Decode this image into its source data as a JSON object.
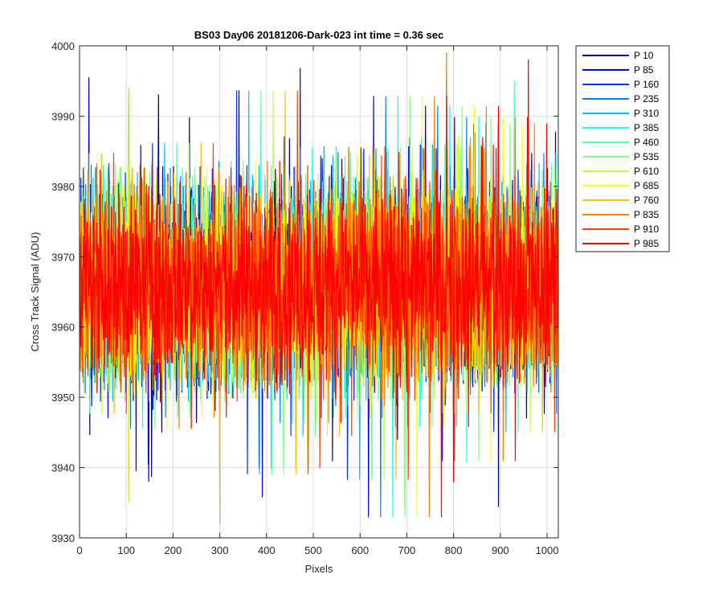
{
  "chart_data": {
    "type": "line",
    "title": "BS03 Day06 20181206-Dark-023 int time = 0.36 sec",
    "xlabel": "Pixels",
    "ylabel": "Cross Track Signal (ADU)",
    "xlim": [
      0,
      1024
    ],
    "ylim": [
      3930,
      4000
    ],
    "xticks": [
      0,
      100,
      200,
      300,
      400,
      500,
      600,
      700,
      800,
      900,
      1000
    ],
    "yticks": [
      3930,
      3940,
      3950,
      3960,
      3970,
      3980,
      3990,
      4000
    ],
    "grid": true,
    "legend_position": "outside-top-right",
    "noise_model": {
      "mean": 3966,
      "typical_range": [
        3950,
        3983
      ],
      "notable_extremes": [
        {
          "x": 105,
          "y": 3994
        },
        {
          "x": 105,
          "y": 3935
        },
        {
          "x": 300,
          "y": 3932
        },
        {
          "x": 785,
          "y": 3999
        },
        {
          "x": 800,
          "y": 3938
        },
        {
          "x": 960,
          "y": 3998
        },
        {
          "x": 930,
          "y": 3995
        },
        {
          "x": 695,
          "y": 3936
        }
      ]
    },
    "series": [
      {
        "name": "P 10",
        "color": "#00008f"
      },
      {
        "name": "P 85",
        "color": "#0000e6"
      },
      {
        "name": "P 160",
        "color": "#0033ff"
      },
      {
        "name": "P 235",
        "color": "#0080ff"
      },
      {
        "name": "P 310",
        "color": "#00c0ff"
      },
      {
        "name": "P 385",
        "color": "#14ffeb"
      },
      {
        "name": "P 460",
        "color": "#55ffaa"
      },
      {
        "name": "P 535",
        "color": "#80ff80"
      },
      {
        "name": "P 610",
        "color": "#c0ff40"
      },
      {
        "name": "P 685",
        "color": "#ffff00"
      },
      {
        "name": "P 760",
        "color": "#ffc000"
      },
      {
        "name": "P 835",
        "color": "#ff8000"
      },
      {
        "name": "P 910",
        "color": "#ff4000"
      },
      {
        "name": "P 985",
        "color": "#ff0000"
      }
    ]
  }
}
